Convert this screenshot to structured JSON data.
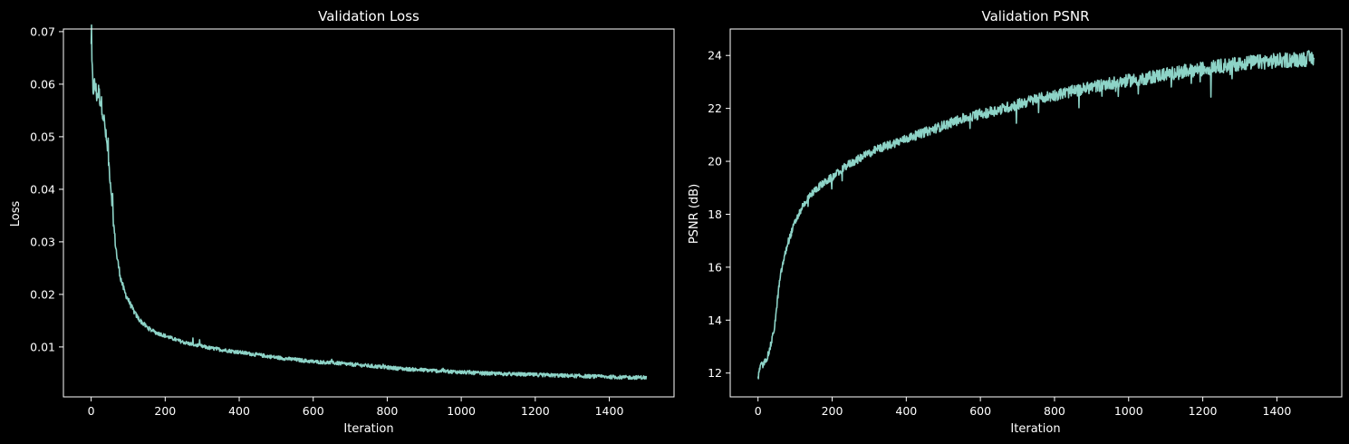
{
  "chart_data": [
    {
      "type": "line",
      "title": "Validation Loss",
      "xlabel": "Iteration",
      "ylabel": "Loss",
      "xlim": [
        -75,
        1575
      ],
      "ylim": [
        0.0005,
        0.0705
      ],
      "xticks": [
        0,
        200,
        400,
        600,
        800,
        1000,
        1200,
        1400
      ],
      "xtick_labels": [
        "0",
        "200",
        "400",
        "600",
        "800",
        "1000",
        "1200",
        "1400"
      ],
      "yticks": [
        0.01,
        0.02,
        0.03,
        0.04,
        0.05,
        0.06,
        0.07
      ],
      "ytick_labels": [
        "0.01",
        "0.02",
        "0.03",
        "0.04",
        "0.05",
        "0.06",
        "0.07"
      ],
      "grid": false,
      "series": [
        {
          "color": "#8dd3c7",
          "x": [
            0,
            5,
            10,
            15,
            20,
            25,
            30,
            35,
            40,
            45,
            50,
            55,
            60,
            65,
            70,
            75,
            80,
            90,
            100,
            110,
            120,
            130,
            140,
            150,
            160,
            170,
            180,
            190,
            200,
            220,
            240,
            260,
            280,
            300,
            320,
            340,
            360,
            380,
            400,
            450,
            500,
            550,
            600,
            650,
            700,
            750,
            800,
            850,
            900,
            950,
            1000,
            1050,
            1100,
            1150,
            1200,
            1250,
            1300,
            1350,
            1400,
            1450,
            1500
          ],
          "y": [
            0.067,
            0.059,
            0.06,
            0.058,
            0.0585,
            0.057,
            0.0555,
            0.053,
            0.05,
            0.047,
            0.043,
            0.039,
            0.034,
            0.03,
            0.027,
            0.025,
            0.023,
            0.0205,
            0.019,
            0.0175,
            0.0162,
            0.0152,
            0.0145,
            0.0138,
            0.0133,
            0.0129,
            0.0126,
            0.0124,
            0.0121,
            0.0116,
            0.0111,
            0.0107,
            0.0104,
            0.0101,
            0.0098,
            0.0096,
            0.0094,
            0.0092,
            0.009,
            0.0085,
            0.008,
            0.0076,
            0.0072,
            0.007,
            0.0067,
            0.0064,
            0.0061,
            0.0058,
            0.0056,
            0.0054,
            0.0052,
            0.005,
            0.0049,
            0.0048,
            0.0047,
            0.0046,
            0.0045,
            0.0044,
            0.0043,
            0.0042,
            0.0042
          ]
        }
      ]
    },
    {
      "type": "line",
      "title": "Validation PSNR",
      "xlabel": "Iteration",
      "ylabel": "PSNR (dB)",
      "xlim": [
        -75,
        1575
      ],
      "ylim": [
        11.1,
        25.0
      ],
      "xticks": [
        0,
        200,
        400,
        600,
        800,
        1000,
        1200,
        1400
      ],
      "xtick_labels": [
        "0",
        "200",
        "400",
        "600",
        "800",
        "1000",
        "1200",
        "1400"
      ],
      "yticks": [
        12,
        14,
        16,
        18,
        20,
        22,
        24
      ],
      "ytick_labels": [
        "12",
        "14",
        "16",
        "18",
        "20",
        "22",
        "24"
      ],
      "grid": false,
      "series": [
        {
          "color": "#8dd3c7",
          "x": [
            0,
            5,
            10,
            15,
            20,
            25,
            30,
            35,
            40,
            45,
            50,
            55,
            60,
            65,
            70,
            75,
            80,
            90,
            100,
            110,
            120,
            130,
            140,
            150,
            160,
            170,
            180,
            190,
            200,
            220,
            240,
            260,
            280,
            300,
            320,
            340,
            360,
            380,
            400,
            450,
            500,
            550,
            600,
            650,
            700,
            750,
            800,
            850,
            900,
            950,
            1000,
            1050,
            1100,
            1150,
            1200,
            1250,
            1300,
            1350,
            1400,
            1450,
            1500
          ],
          "y": [
            11.8,
            12.2,
            12.3,
            12.3,
            12.5,
            12.6,
            12.8,
            13.1,
            13.4,
            13.8,
            14.4,
            15.1,
            15.6,
            16.0,
            16.3,
            16.6,
            16.9,
            17.3,
            17.7,
            18.0,
            18.3,
            18.5,
            18.7,
            18.85,
            19.0,
            19.1,
            19.2,
            19.3,
            19.4,
            19.6,
            19.85,
            20.0,
            20.15,
            20.3,
            20.45,
            20.55,
            20.65,
            20.75,
            20.85,
            21.1,
            21.35,
            21.6,
            21.8,
            21.95,
            22.15,
            22.35,
            22.5,
            22.65,
            22.8,
            22.95,
            23.05,
            23.15,
            23.3,
            23.4,
            23.5,
            23.6,
            23.7,
            23.75,
            23.8,
            23.85,
            23.9
          ]
        }
      ]
    }
  ]
}
